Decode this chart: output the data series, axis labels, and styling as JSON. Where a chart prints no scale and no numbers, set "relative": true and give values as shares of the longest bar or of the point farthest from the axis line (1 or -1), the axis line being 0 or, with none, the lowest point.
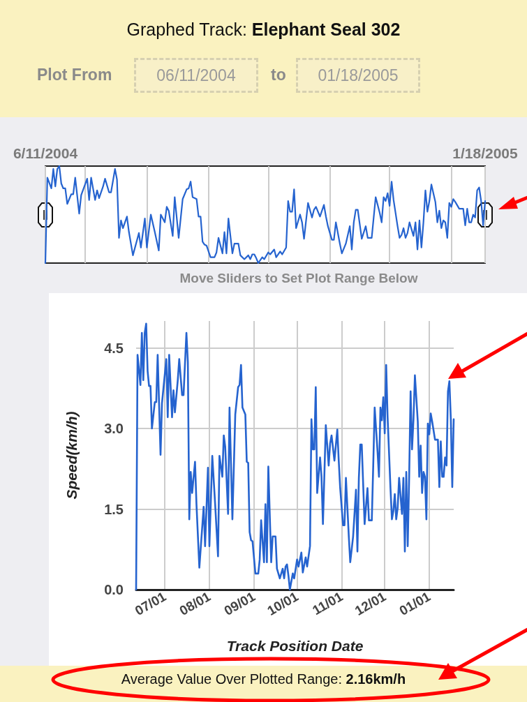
{
  "chart_data": [
    {
      "type": "line",
      "title": "Graphed Track: Elephant Seal 302",
      "relative": true,
      "annotations": [
        "Plot From",
        "06/11/2004",
        "to",
        "01/18/2005",
        "Move Sliders to Set Plot Range Below"
      ],
      "x": [
        "2004-06-11",
        "2004-06-12",
        "2004-06-14",
        "2004-06-15",
        "2004-06-16",
        "2004-06-17",
        "2004-06-18",
        "2004-06-19",
        "2004-06-20",
        "2004-06-21",
        "2004-06-22",
        "2004-06-24",
        "2004-06-25",
        "2004-06-26",
        "2004-06-28",
        "2004-06-29",
        "2004-07-02",
        "2004-07-03",
        "2004-07-04",
        "2004-07-06",
        "2004-07-07",
        "2004-07-08",
        "2004-07-10",
        "2004-07-11",
        "2004-07-13",
        "2004-07-14",
        "2004-07-16",
        "2004-07-17",
        "2004-07-18",
        "2004-07-19",
        "2004-07-20",
        "2004-07-22",
        "2004-07-23",
        "2004-07-25",
        "2004-07-28",
        "2004-07-29",
        "2004-07-31",
        "2004-08-01",
        "2004-08-03",
        "2004-08-05",
        "2004-08-07",
        "2004-08-08",
        "2004-08-10",
        "2004-08-11",
        "2004-08-12",
        "2004-08-14",
        "2004-08-15",
        "2004-08-17",
        "2004-08-19",
        "2004-08-21",
        "2004-08-22",
        "2004-08-23",
        "2004-08-24",
        "2004-08-26",
        "2004-08-27",
        "2004-08-28",
        "2004-08-29",
        "2004-08-30",
        "2004-08-31",
        "2004-09-02",
        "2004-09-04",
        "2004-09-05",
        "2004-09-06",
        "2004-09-08",
        "2004-09-09",
        "2004-09-10",
        "2004-09-11",
        "2004-09-13",
        "2004-09-14",
        "2004-09-16",
        "2004-09-17",
        "2004-09-19",
        "2004-09-21",
        "2004-09-22",
        "2004-09-23",
        "2004-09-24",
        "2004-09-25",
        "2004-09-26",
        "2004-09-28",
        "2004-09-29",
        "2004-10-01",
        "2004-10-02",
        "2004-10-04",
        "2004-10-05",
        "2004-10-07",
        "2004-10-08",
        "2004-10-10",
        "2004-10-11",
        "2004-10-12",
        "2004-10-13",
        "2004-10-14",
        "2004-10-15",
        "2004-10-17",
        "2004-10-18",
        "2004-10-19",
        "2004-10-21",
        "2004-10-23",
        "2004-10-24",
        "2004-10-25",
        "2004-10-27",
        "2004-10-29",
        "2004-10-30",
        "2004-10-31",
        "2004-11-02",
        "2004-11-03",
        "2004-11-04",
        "2004-11-06",
        "2004-11-07",
        "2004-11-09",
        "2004-11-11",
        "2004-11-12",
        "2004-11-13",
        "2004-11-14",
        "2004-11-15",
        "2004-11-17",
        "2004-11-19",
        "2004-11-20",
        "2004-11-22",
        "2004-11-23",
        "2004-11-24",
        "2004-11-26",
        "2004-11-27",
        "2004-11-28",
        "2004-11-29",
        "2004-11-30",
        "2004-12-01",
        "2004-12-02",
        "2004-12-03",
        "2004-12-05",
        "2004-12-06",
        "2004-12-07",
        "2004-12-08",
        "2004-12-09",
        "2004-12-10",
        "2004-12-11",
        "2004-12-13",
        "2004-12-14",
        "2004-12-15",
        "2004-12-16",
        "2004-12-17",
        "2004-12-18",
        "2004-12-19",
        "2004-12-20",
        "2004-12-21",
        "2004-12-22",
        "2004-12-24",
        "2004-12-25",
        "2004-12-26",
        "2004-12-27",
        "2004-12-28",
        "2004-12-29",
        "2004-12-30",
        "2004-12-31",
        "2005-01-01",
        "2005-01-02",
        "2005-01-03",
        "2005-01-05",
        "2005-01-07",
        "2005-01-08",
        "2005-01-09",
        "2005-01-10",
        "2005-01-11",
        "2005-01-12",
        "2005-01-13",
        "2005-01-14",
        "2005-01-15",
        "2005-01-16",
        "2005-01-17",
        "2005-01-18"
      ],
      "series": [
        {
          "color": "#2563cf",
          "values": [
            0,
            0.88,
            0.77,
            0.97,
            0.79,
            0.97,
            1,
            0.82,
            0.77,
            0.77,
            0.61,
            0.71,
            0.71,
            0.88,
            0.51,
            0.7,
            0.87,
            0.65,
            0.88,
            0.65,
            0.75,
            0.67,
            0.79,
            0.87,
            0.73,
            0.73,
            0.97,
            0.86,
            0.26,
            0.44,
            0.36,
            0.48,
            0.32,
            0.08,
            0.31,
            0.16,
            0.46,
            0.16,
            0.5,
            0.32,
            0.13,
            0.5,
            0.42,
            0.58,
            0.54,
            0.28,
            0.68,
            0.26,
            0.66,
            0.76,
            0.77,
            0.84,
            0.68,
            0.66,
            0.48,
            0.48,
            0.22,
            0.19,
            0.18,
            0.06,
            0.06,
            0.11,
            0.26,
            0.1,
            0.32,
            0.1,
            0.46,
            0.1,
            0.2,
            0.2,
            0.08,
            0.04,
            0.08,
            0.04,
            0.09,
            0.09,
            0.05,
            0,
            0.06,
            0.04,
            0.11,
            0.09,
            0.14,
            0.06,
            0.12,
            0.09,
            0.16,
            0.64,
            0.53,
            0.53,
            0.76,
            0.36,
            0.5,
            0.42,
            0.25,
            0.62,
            0.47,
            0.55,
            0.58,
            0.48,
            0.6,
            0.48,
            0.38,
            0.24,
            0.24,
            0.42,
            0.2,
            0.1,
            0.2,
            0.38,
            0.14,
            0.42,
            0.55,
            0.55,
            0.25,
            0.38,
            0.26,
            0.26,
            0.47,
            0.68,
            0.52,
            0.42,
            0.68,
            0.64,
            0.72,
            0.59,
            0.84,
            0.65,
            0.38,
            0.26,
            0.29,
            0.36,
            0.26,
            0.31,
            0.42,
            0.28,
            0.42,
            0.14,
            0.44,
            0.16,
            0.42,
            0.75,
            0.53,
            0.64,
            0.81,
            0.63,
            0.42,
            0.54,
            0.36,
            0.44,
            0.42,
            0.26,
            0.62,
            0.58,
            0.66,
            0.63,
            0.56,
            0.56,
            0.39,
            0.56,
            0.42,
            0.42,
            0.5,
            0.47,
            0.75,
            0.78,
            0.64,
            0.39,
            0.64
          ]
        }
      ],
      "xlim": [
        "2004-06-11",
        "2005-01-18"
      ],
      "xticks": [
        {
          "value": "2004-06-11",
          "label": "6/11/2004"
        },
        {
          "value": "2004-07-01",
          "label": null
        },
        {
          "value": "2004-08-01",
          "label": null
        },
        {
          "value": "2004-09-01",
          "label": null
        },
        {
          "value": "2004-10-01",
          "label": null
        },
        {
          "value": "2004-11-01",
          "label": null
        },
        {
          "value": "2004-12-01",
          "label": null
        },
        {
          "value": "2005-01-01",
          "label": null
        },
        {
          "value": "2005-01-18",
          "label": "1/18/2005"
        }
      ],
      "tick_labels": "x",
      "grid": "x",
      "marker": "none",
      "line_style": "solid"
    },
    {
      "type": "line",
      "xlabel": "Track Position Date",
      "ylabel": "Speed(km/h)",
      "annotations": [
        "Average Value Over Plotted Range: 2.16km/h"
      ],
      "x": [
        "2004-06-11",
        "2004-06-12",
        "2004-06-14",
        "2004-06-15",
        "2004-06-16",
        "2004-06-17",
        "2004-06-18",
        "2004-06-19",
        "2004-06-20",
        "2004-06-21",
        "2004-06-22",
        "2004-06-24",
        "2004-06-25",
        "2004-06-26",
        "2004-06-28",
        "2004-06-29",
        "2004-07-02",
        "2004-07-03",
        "2004-07-04",
        "2004-07-06",
        "2004-07-07",
        "2004-07-08",
        "2004-07-10",
        "2004-07-11",
        "2004-07-13",
        "2004-07-14",
        "2004-07-16",
        "2004-07-17",
        "2004-07-18",
        "2004-07-19",
        "2004-07-20",
        "2004-07-22",
        "2004-07-23",
        "2004-07-25",
        "2004-07-28",
        "2004-07-29",
        "2004-07-31",
        "2004-08-01",
        "2004-08-03",
        "2004-08-05",
        "2004-08-07",
        "2004-08-08",
        "2004-08-10",
        "2004-08-11",
        "2004-08-12",
        "2004-08-14",
        "2004-08-15",
        "2004-08-17",
        "2004-08-19",
        "2004-08-21",
        "2004-08-22",
        "2004-08-23",
        "2004-08-24",
        "2004-08-26",
        "2004-08-27",
        "2004-08-28",
        "2004-08-29",
        "2004-08-30",
        "2004-08-31",
        "2004-09-02",
        "2004-09-04",
        "2004-09-05",
        "2004-09-06",
        "2004-09-08",
        "2004-09-09",
        "2004-09-10",
        "2004-09-11",
        "2004-09-13",
        "2004-09-14",
        "2004-09-16",
        "2004-09-17",
        "2004-09-19",
        "2004-09-21",
        "2004-09-22",
        "2004-09-23",
        "2004-09-24",
        "2004-09-25",
        "2004-09-26",
        "2004-09-28",
        "2004-09-29",
        "2004-10-01",
        "2004-10-02",
        "2004-10-04",
        "2004-10-05",
        "2004-10-07",
        "2004-10-08",
        "2004-10-10",
        "2004-10-11",
        "2004-10-12",
        "2004-10-13",
        "2004-10-14",
        "2004-10-15",
        "2004-10-17",
        "2004-10-18",
        "2004-10-19",
        "2004-10-21",
        "2004-10-23",
        "2004-10-24",
        "2004-10-25",
        "2004-10-27",
        "2004-10-29",
        "2004-10-30",
        "2004-10-31",
        "2004-11-02",
        "2004-11-03",
        "2004-11-04",
        "2004-11-06",
        "2004-11-07",
        "2004-11-09",
        "2004-11-11",
        "2004-11-12",
        "2004-11-13",
        "2004-11-14",
        "2004-11-15",
        "2004-11-17",
        "2004-11-19",
        "2004-11-20",
        "2004-11-22",
        "2004-11-23",
        "2004-11-24",
        "2004-11-26",
        "2004-11-27",
        "2004-11-28",
        "2004-11-29",
        "2004-11-30",
        "2004-12-01",
        "2004-12-02",
        "2004-12-03",
        "2004-12-05",
        "2004-12-06",
        "2004-12-07",
        "2004-12-08",
        "2004-12-09",
        "2004-12-10",
        "2004-12-11",
        "2004-12-13",
        "2004-12-14",
        "2004-12-15",
        "2004-12-16",
        "2004-12-17",
        "2004-12-18",
        "2004-12-19",
        "2004-12-20",
        "2004-12-21",
        "2004-12-22",
        "2004-12-24",
        "2004-12-25",
        "2004-12-26",
        "2004-12-27",
        "2004-12-28",
        "2004-12-29",
        "2004-12-30",
        "2004-12-31",
        "2005-01-01",
        "2005-01-02",
        "2005-01-03",
        "2005-01-05",
        "2005-01-07",
        "2005-01-08",
        "2005-01-09",
        "2005-01-10",
        "2005-01-11",
        "2005-01-12",
        "2005-01-13",
        "2005-01-14",
        "2005-01-15",
        "2005-01-16",
        "2005-01-17",
        "2005-01-18"
      ],
      "series": [
        {
          "color": "#2563cf",
          "values": [
            0.0,
            4.37,
            3.81,
            4.78,
            3.9,
            4.78,
            4.95,
            4.07,
            3.79,
            3.79,
            3.0,
            3.49,
            3.49,
            4.37,
            2.51,
            3.47,
            4.29,
            3.21,
            4.37,
            3.21,
            3.71,
            3.3,
            3.9,
            4.29,
            3.62,
            3.62,
            4.78,
            4.24,
            1.31,
            2.19,
            1.8,
            2.38,
            1.59,
            0.41,
            1.54,
            0.81,
            2.27,
            0.81,
            2.49,
            1.59,
            0.62,
            2.49,
            2.1,
            2.87,
            2.66,
            1.41,
            3.39,
            1.31,
            3.26,
            3.77,
            3.81,
            4.18,
            3.39,
            3.26,
            2.38,
            2.36,
            1.07,
            0.92,
            0.9,
            0.3,
            0.3,
            0.56,
            1.29,
            0.51,
            1.59,
            0.51,
            2.29,
            0.51,
            0.99,
            0.99,
            0.39,
            0.21,
            0.39,
            0.21,
            0.43,
            0.47,
            0.26,
            0.0,
            0.3,
            0.21,
            0.56,
            0.43,
            0.69,
            0.32,
            0.6,
            0.43,
            0.81,
            3.17,
            2.61,
            2.61,
            3.77,
            1.8,
            2.46,
            2.1,
            1.22,
            3.06,
            2.31,
            2.72,
            2.87,
            2.4,
            2.98,
            2.4,
            1.89,
            1.2,
            1.2,
            2.08,
            0.99,
            0.51,
            0.99,
            1.86,
            0.71,
            2.08,
            2.7,
            2.7,
            1.22,
            1.89,
            1.29,
            1.29,
            2.31,
            3.39,
            2.57,
            2.1,
            3.39,
            3.15,
            3.58,
            2.91,
            4.18,
            3.21,
            1.89,
            1.31,
            1.46,
            1.78,
            1.31,
            1.52,
            2.08,
            1.41,
            2.08,
            0.71,
            2.19,
            0.81,
            2.1,
            3.69,
            2.61,
            3.17,
            3.99,
            3.13,
            2.1,
            2.68,
            1.8,
            2.19,
            2.1,
            1.31,
            3.09,
            2.89,
            3.28,
            3.13,
            2.79,
            2.79,
            1.91,
            2.76,
            2.1,
            2.1,
            2.46,
            2.31,
            3.69,
            3.88,
            3.17,
            1.91,
            3.17
          ]
        }
      ],
      "xlim": [
        "2004-06-11",
        "2005-01-18"
      ],
      "xticks": [
        {
          "value": "2004-07-01",
          "label": "07/01"
        },
        {
          "value": "2004-08-01",
          "label": "08/01"
        },
        {
          "value": "2004-09-01",
          "label": "09/01"
        },
        {
          "value": "2004-10-01",
          "label": "10/01"
        },
        {
          "value": "2004-11-01",
          "label": "11/01"
        },
        {
          "value": "2004-12-01",
          "label": "12/01"
        },
        {
          "value": "2005-01-01",
          "label": "01/01"
        }
      ],
      "ylim": [
        0,
        5
      ],
      "yticks": [
        {
          "value": 0,
          "label": "0.0"
        },
        1.5,
        {
          "value": 3,
          "label": "3.0"
        },
        4.5
      ],
      "grid": true,
      "marker": "none",
      "line_style": "solid"
    }
  ]
}
